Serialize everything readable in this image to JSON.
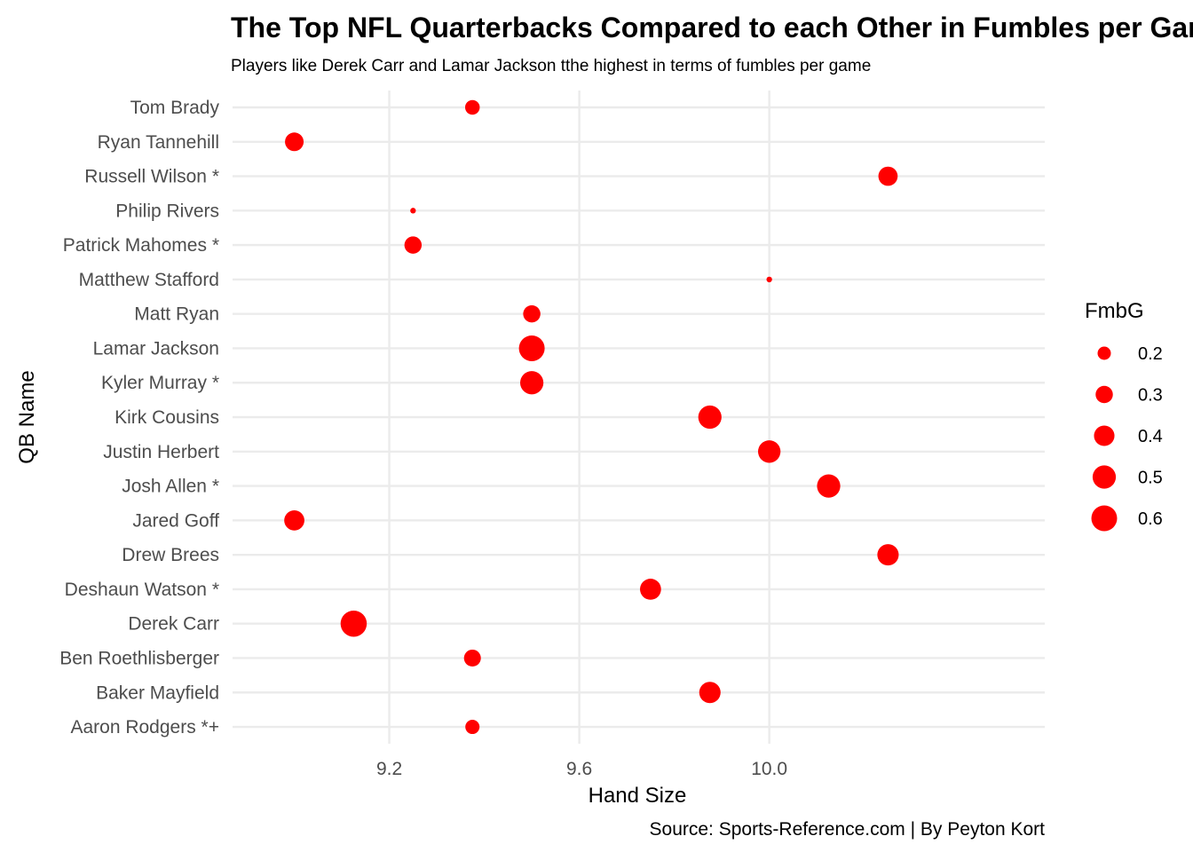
{
  "chart_data": {
    "type": "scatter",
    "title": "The Top NFL Quarterbacks Compared to each Other in Fumbles per Game",
    "subtitle": "Players like Derek Carr and Lamar Jackson tthe highest in terms of fumbles per game",
    "caption": "Source: Sports-Reference.com | By Peyton Kort",
    "xlabel": "Hand Size",
    "ylabel": "QB Name",
    "xlim": [
      8.87,
      10.58
    ],
    "x_ticks": [
      9.2,
      9.6,
      10.0
    ],
    "x_tick_labels": [
      "9.2",
      "9.6",
      "10.0"
    ],
    "grid": true,
    "point_color": "#ff0000",
    "categories": [
      "Aaron Rodgers *+",
      "Baker Mayfield",
      "Ben Roethlisberger",
      "Derek Carr",
      "Deshaun Watson *",
      "Drew Brees",
      "Jared Goff",
      "Josh Allen *",
      "Justin Herbert",
      "Kirk Cousins",
      "Kyler Murray *",
      "Lamar Jackson",
      "Matt Ryan",
      "Matthew Stafford",
      "Patrick Mahomes *",
      "Philip Rivers",
      "Russell Wilson *",
      "Ryan Tannehill",
      "Tom Brady"
    ],
    "points": [
      {
        "name": "Aaron Rodgers *+",
        "x": 9.375,
        "size": 0.22
      },
      {
        "name": "Baker Mayfield",
        "x": 9.875,
        "size": 0.43
      },
      {
        "name": "Ben Roethlisberger",
        "x": 9.375,
        "size": 0.29
      },
      {
        "name": "Derek Carr",
        "x": 9.125,
        "size": 0.62
      },
      {
        "name": "Deshaun Watson *",
        "x": 9.75,
        "size": 0.42
      },
      {
        "name": "Drew Brees",
        "x": 10.25,
        "size": 0.43
      },
      {
        "name": "Jared Goff",
        "x": 9.0,
        "size": 0.39
      },
      {
        "name": "Josh Allen *",
        "x": 10.125,
        "size": 0.5
      },
      {
        "name": "Justin Herbert",
        "x": 10.0,
        "size": 0.47
      },
      {
        "name": "Kirk Cousins",
        "x": 9.875,
        "size": 0.5
      },
      {
        "name": "Kyler Murray *",
        "x": 9.5,
        "size": 0.5
      },
      {
        "name": "Lamar Jackson",
        "x": 9.5,
        "size": 0.6
      },
      {
        "name": "Matt Ryan",
        "x": 9.5,
        "size": 0.3
      },
      {
        "name": "Matthew Stafford",
        "x": 10.0,
        "size": 0.08
      },
      {
        "name": "Patrick Mahomes *",
        "x": 9.25,
        "size": 0.3
      },
      {
        "name": "Philip Rivers",
        "x": 9.25,
        "size": 0.08
      },
      {
        "name": "Russell Wilson *",
        "x": 10.25,
        "size": 0.36
      },
      {
        "name": "Ryan Tannehill",
        "x": 9.0,
        "size": 0.34
      },
      {
        "name": "Tom Brady",
        "x": 9.375,
        "size": 0.23
      }
    ],
    "legend": {
      "title": "FmbG",
      "position": "right",
      "entries": [
        {
          "value": 0.2,
          "label": "0.2"
        },
        {
          "value": 0.3,
          "label": "0.3"
        },
        {
          "value": 0.4,
          "label": "0.4"
        },
        {
          "value": 0.5,
          "label": "0.5"
        },
        {
          "value": 0.6,
          "label": "0.6"
        }
      ]
    }
  }
}
